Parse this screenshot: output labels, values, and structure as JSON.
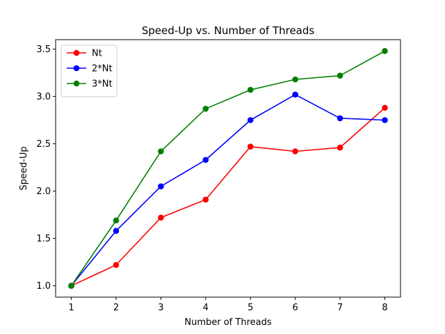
{
  "chart_data": {
    "type": "line",
    "title": "Speed-Up vs. Number of Threads",
    "xlabel": "Number of Threads",
    "ylabel": "Speed-Up",
    "x": [
      1,
      2,
      3,
      4,
      5,
      6,
      7,
      8
    ],
    "xlim": [
      0.65,
      8.35
    ],
    "ylim": [
      0.88,
      3.6
    ],
    "xticks": [
      "1",
      "2",
      "3",
      "4",
      "5",
      "6",
      "7",
      "8"
    ],
    "yticks": [
      "1.0",
      "1.5",
      "2.0",
      "2.5",
      "3.0",
      "3.5"
    ],
    "grid": false,
    "legend_position": "top-left",
    "series": [
      {
        "name": "Nt",
        "color": "#ff0000",
        "values": [
          1.0,
          1.22,
          1.72,
          1.91,
          2.47,
          2.42,
          2.46,
          2.88
        ]
      },
      {
        "name": "2*Nt",
        "color": "#0000ff",
        "values": [
          1.0,
          1.58,
          2.05,
          2.33,
          2.75,
          3.02,
          2.77,
          2.75
        ]
      },
      {
        "name": "3*Nt",
        "color": "#008000",
        "values": [
          1.0,
          1.69,
          2.42,
          2.87,
          3.07,
          3.18,
          3.22,
          3.48
        ]
      }
    ]
  }
}
